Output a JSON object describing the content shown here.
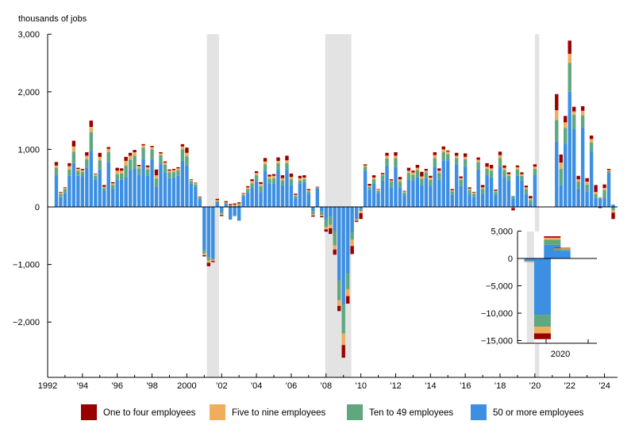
{
  "chart_data": {
    "type": "stacked-bar",
    "unit_label": "thousands of jobs",
    "y_ticks": [
      3000,
      2000,
      1000,
      0,
      -1000,
      -2000
    ],
    "y_tick_labels": [
      "3,000",
      "2,000",
      "1,000",
      "0",
      "−1,000",
      "−2,000"
    ],
    "ylim": [
      -2900,
      3000
    ],
    "x_range": [
      1992.0,
      2024.75
    ],
    "x_ticks": [
      1992,
      1994,
      1996,
      1998,
      2000,
      2002,
      2004,
      2006,
      2008,
      2010,
      2012,
      2014,
      2016,
      2018,
      2020,
      2022,
      2024
    ],
    "x_tick_labels": [
      "1992",
      "’94",
      "’96",
      "’98",
      "2000",
      "’02",
      "’04",
      "’06",
      "’08",
      "’10",
      "’12",
      "’14",
      "’16",
      "’18",
      "’20",
      "’22",
      "’24"
    ],
    "recessions": [
      [
        2001.15,
        2001.85
      ],
      [
        2007.95,
        2009.45
      ],
      [
        2020.0,
        2020.25
      ]
    ],
    "series": [
      {
        "name": "One to four employees",
        "color": "#990000"
      },
      {
        "name": "Five to nine employees",
        "color": "#f0ad5d"
      },
      {
        "name": "Ten to 49 employees",
        "color": "#5fa77f"
      },
      {
        "name": "50 or more employees",
        "color": "#3c8fe3"
      }
    ],
    "bars": [
      {
        "x": 1992.5,
        "v": [
          60,
          40,
          130,
          550
        ]
      },
      {
        "x": 1992.75,
        "v": [
          10,
          20,
          60,
          170
        ]
      },
      {
        "x": 1993.0,
        "v": [
          10,
          20,
          70,
          240
        ]
      },
      {
        "x": 1993.25,
        "v": [
          50,
          60,
          110,
          540
        ]
      },
      {
        "x": 1993.5,
        "v": [
          100,
          90,
          200,
          760
        ]
      },
      {
        "x": 1993.75,
        "v": [
          20,
          30,
          90,
          540
        ]
      },
      {
        "x": 1994.0,
        "v": [
          20,
          30,
          80,
          530
        ]
      },
      {
        "x": 1994.25,
        "v": [
          60,
          60,
          150,
          680
        ]
      },
      {
        "x": 1994.5,
        "v": [
          110,
          90,
          330,
          970
        ]
      },
      {
        "x": 1994.75,
        "v": [
          10,
          30,
          70,
          470
        ]
      },
      {
        "x": 1995.0,
        "v": [
          70,
          60,
          160,
          650
        ]
      },
      {
        "x": 1995.25,
        "v": [
          30,
          20,
          40,
          290
        ]
      },
      {
        "x": 1995.5,
        "v": [
          30,
          60,
          170,
          780
        ]
      },
      {
        "x": 1995.75,
        "v": [
          20,
          30,
          70,
          310
        ]
      },
      {
        "x": 1996.0,
        "v": [
          50,
          60,
          100,
          470
        ]
      },
      {
        "x": 1996.25,
        "v": [
          40,
          50,
          110,
          470
        ]
      },
      {
        "x": 1996.5,
        "v": [
          70,
          80,
          210,
          510
        ]
      },
      {
        "x": 1996.75,
        "v": [
          50,
          70,
          180,
          640
        ]
      },
      {
        "x": 1997.0,
        "v": [
          40,
          60,
          220,
          670
        ]
      },
      {
        "x": 1997.25,
        "v": [
          20,
          40,
          110,
          560
        ]
      },
      {
        "x": 1997.5,
        "v": [
          20,
          40,
          200,
          830
        ]
      },
      {
        "x": 1997.75,
        "v": [
          30,
          40,
          110,
          540
        ]
      },
      {
        "x": 1998.0,
        "v": [
          20,
          40,
          180,
          820
        ]
      },
      {
        "x": 1998.25,
        "v": [
          100,
          60,
          140,
          350
        ]
      },
      {
        "x": 1998.5,
        "v": [
          20,
          30,
          150,
          750
        ]
      },
      {
        "x": 1998.75,
        "v": [
          20,
          40,
          130,
          600
        ]
      },
      {
        "x": 1999.0,
        "v": [
          20,
          30,
          100,
          500
        ]
      },
      {
        "x": 1999.25,
        "v": [
          20,
          30,
          100,
          510
        ]
      },
      {
        "x": 1999.5,
        "v": [
          20,
          30,
          100,
          540
        ]
      },
      {
        "x": 1999.75,
        "v": [
          40,
          50,
          200,
          800
        ]
      },
      {
        "x": 2000.0,
        "v": [
          90,
          60,
          160,
          720
        ]
      },
      {
        "x": 2000.25,
        "v": [
          10,
          20,
          50,
          400
        ]
      },
      {
        "x": 2000.5,
        "v": [
          10,
          20,
          40,
          350
        ]
      },
      {
        "x": 2000.75,
        "v": [
          10,
          10,
          30,
          130
        ]
      },
      {
        "x": 2001.0,
        "v": [
          -20,
          -30,
          -60,
          -750
        ]
      },
      {
        "x": 2001.25,
        "v": [
          -60,
          -40,
          -60,
          -870
        ]
      },
      {
        "x": 2001.5,
        "v": [
          -20,
          -20,
          -20,
          -900
        ]
      },
      {
        "x": 2001.75,
        "v": [
          20,
          20,
          20,
          80
        ]
      },
      {
        "x": 2002.0,
        "v": [
          -20,
          -20,
          -30,
          -90
        ]
      },
      {
        "x": 2002.25,
        "v": [
          20,
          10,
          20,
          50
        ]
      },
      {
        "x": 2002.5,
        "v": [
          20,
          10,
          20,
          -220
        ]
      },
      {
        "x": 2002.75,
        "v": [
          20,
          20,
          20,
          -160
        ]
      },
      {
        "x": 2003.0,
        "v": [
          20,
          20,
          40,
          -240
        ]
      },
      {
        "x": 2003.25,
        "v": [
          10,
          20,
          30,
          180
        ]
      },
      {
        "x": 2003.5,
        "v": [
          20,
          30,
          60,
          250
        ]
      },
      {
        "x": 2003.75,
        "v": [
          30,
          40,
          80,
          330
        ]
      },
      {
        "x": 2004.0,
        "v": [
          30,
          40,
          100,
          450
        ]
      },
      {
        "x": 2004.25,
        "v": [
          30,
          40,
          100,
          260
        ]
      },
      {
        "x": 2004.5,
        "v": [
          60,
          50,
          110,
          630
        ]
      },
      {
        "x": 2004.75,
        "v": [
          30,
          40,
          80,
          410
        ]
      },
      {
        "x": 2005.0,
        "v": [
          30,
          40,
          100,
          400
        ]
      },
      {
        "x": 2005.25,
        "v": [
          60,
          40,
          110,
          650
        ]
      },
      {
        "x": 2005.5,
        "v": [
          50,
          40,
          80,
          380
        ]
      },
      {
        "x": 2005.75,
        "v": [
          80,
          50,
          110,
          650
        ]
      },
      {
        "x": 2006.0,
        "v": [
          60,
          40,
          100,
          380
        ]
      },
      {
        "x": 2006.25,
        "v": [
          20,
          20,
          40,
          150
        ]
      },
      {
        "x": 2006.5,
        "v": [
          40,
          40,
          60,
          400
        ]
      },
      {
        "x": 2006.75,
        "v": [
          40,
          30,
          50,
          430
        ]
      },
      {
        "x": 2007.0,
        "v": [
          20,
          20,
          40,
          230
        ]
      },
      {
        "x": 2007.25,
        "v": [
          -20,
          -20,
          -60,
          -70
        ]
      },
      {
        "x": 2007.5,
        "v": [
          10,
          10,
          20,
          310
        ]
      },
      {
        "x": 2007.75,
        "v": [
          -20,
          -20,
          -60,
          -80
        ]
      },
      {
        "x": 2008.0,
        "v": [
          -40,
          -40,
          -130,
          -220
        ]
      },
      {
        "x": 2008.25,
        "v": [
          -100,
          -60,
          -140,
          -170
        ]
      },
      {
        "x": 2008.5,
        "v": [
          -90,
          -70,
          -250,
          -420
        ]
      },
      {
        "x": 2008.75,
        "v": [
          -90,
          -100,
          -340,
          -1280
        ]
      },
      {
        "x": 2009.0,
        "v": [
          -220,
          -200,
          -500,
          -1700
        ]
      },
      {
        "x": 2009.25,
        "v": [
          -130,
          -120,
          -280,
          -1150
        ]
      },
      {
        "x": 2009.5,
        "v": [
          -140,
          -110,
          -130,
          -440
        ]
      },
      {
        "x": 2009.75,
        "v": [
          -20,
          -20,
          -20,
          -200
        ]
      },
      {
        "x": 2010.0,
        "v": [
          -100,
          -40,
          -30,
          -40
        ]
      },
      {
        "x": 2010.25,
        "v": [
          20,
          20,
          80,
          620
        ]
      },
      {
        "x": 2010.5,
        "v": [
          30,
          20,
          50,
          300
        ]
      },
      {
        "x": 2010.75,
        "v": [
          40,
          30,
          80,
          400
        ]
      },
      {
        "x": 2011.0,
        "v": [
          10,
          20,
          40,
          240
        ]
      },
      {
        "x": 2011.25,
        "v": [
          20,
          20,
          90,
          460
        ]
      },
      {
        "x": 2011.5,
        "v": [
          50,
          50,
          120,
          720
        ]
      },
      {
        "x": 2011.75,
        "v": [
          20,
          20,
          100,
          340
        ]
      },
      {
        "x": 2012.0,
        "v": [
          60,
          40,
          160,
          690
        ]
      },
      {
        "x": 2012.25,
        "v": [
          40,
          40,
          100,
          340
        ]
      },
      {
        "x": 2012.5,
        "v": [
          10,
          20,
          50,
          200
        ]
      },
      {
        "x": 2012.75,
        "v": [
          50,
          40,
          110,
          480
        ]
      },
      {
        "x": 2013.0,
        "v": [
          30,
          40,
          100,
          460
        ]
      },
      {
        "x": 2013.25,
        "v": [
          50,
          40,
          120,
          520
        ]
      },
      {
        "x": 2013.5,
        "v": [
          80,
          40,
          110,
          380
        ]
      },
      {
        "x": 2013.75,
        "v": [
          30,
          30,
          100,
          500
        ]
      },
      {
        "x": 2014.0,
        "v": [
          30,
          40,
          100,
          370
        ]
      },
      {
        "x": 2014.25,
        "v": [
          50,
          50,
          150,
          700
        ]
      },
      {
        "x": 2014.5,
        "v": [
          40,
          40,
          120,
          470
        ]
      },
      {
        "x": 2014.75,
        "v": [
          50,
          50,
          140,
          810
        ]
      },
      {
        "x": 2015.0,
        "v": [
          20,
          40,
          110,
          810
        ]
      },
      {
        "x": 2015.25,
        "v": [
          20,
          20,
          60,
          210
        ]
      },
      {
        "x": 2015.5,
        "v": [
          50,
          40,
          120,
          730
        ]
      },
      {
        "x": 2015.75,
        "v": [
          30,
          30,
          110,
          360
        ]
      },
      {
        "x": 2016.0,
        "v": [
          60,
          40,
          130,
          700
        ]
      },
      {
        "x": 2016.25,
        "v": [
          20,
          20,
          80,
          220
        ]
      },
      {
        "x": 2016.5,
        "v": [
          10,
          20,
          60,
          170
        ]
      },
      {
        "x": 2016.75,
        "v": [
          40,
          40,
          130,
          650
        ]
      },
      {
        "x": 2017.0,
        "v": [
          40,
          30,
          80,
          230
        ]
      },
      {
        "x": 2017.25,
        "v": [
          60,
          40,
          110,
          550
        ]
      },
      {
        "x": 2017.5,
        "v": [
          60,
          40,
          120,
          510
        ]
      },
      {
        "x": 2017.75,
        "v": [
          20,
          20,
          60,
          200
        ]
      },
      {
        "x": 2018.0,
        "v": [
          60,
          50,
          160,
          690
        ]
      },
      {
        "x": 2018.25,
        "v": [
          40,
          40,
          120,
          520
        ]
      },
      {
        "x": 2018.5,
        "v": [
          30,
          30,
          80,
          460
        ]
      },
      {
        "x": 2018.75,
        "v": [
          -40,
          -20,
          40,
          150
        ]
      },
      {
        "x": 2019.0,
        "v": [
          30,
          40,
          110,
          540
        ]
      },
      {
        "x": 2019.25,
        "v": [
          30,
          30,
          80,
          460
        ]
      },
      {
        "x": 2019.5,
        "v": [
          30,
          30,
          80,
          230
        ]
      },
      {
        "x": 2019.75,
        "v": [
          40,
          30,
          60,
          60
        ]
      },
      {
        "x": 2020.0,
        "v": [
          40,
          40,
          100,
          560
        ]
      },
      {
        "x": 2021.25,
        "v": [
          280,
          170,
          380,
          1130
        ]
      },
      {
        "x": 2021.5,
        "v": [
          140,
          110,
          280,
          380
        ]
      },
      {
        "x": 2021.75,
        "v": [
          110,
          100,
          270,
          1100
        ]
      },
      {
        "x": 2022.0,
        "v": [
          230,
          160,
          500,
          2000
        ]
      },
      {
        "x": 2022.25,
        "v": [
          80,
          60,
          250,
          1350
        ]
      },
      {
        "x": 2022.5,
        "v": [
          60,
          40,
          120,
          320
        ]
      },
      {
        "x": 2022.75,
        "v": [
          80,
          80,
          210,
          1380
        ]
      },
      {
        "x": 2023.0,
        "v": [
          60,
          50,
          120,
          270
        ]
      },
      {
        "x": 2023.25,
        "v": [
          60,
          60,
          150,
          970
        ]
      },
      {
        "x": 2023.5,
        "v": [
          120,
          40,
          60,
          160
        ]
      },
      {
        "x": 2023.75,
        "v": [
          -20,
          10,
          20,
          140
        ]
      },
      {
        "x": 2024.0,
        "v": [
          60,
          40,
          130,
          160
        ]
      },
      {
        "x": 2024.25,
        "v": [
          20,
          20,
          30,
          590
        ]
      },
      {
        "x": 2024.5,
        "v": [
          -110,
          -40,
          -60,
          40
        ]
      }
    ],
    "inset": {
      "y_ticks": [
        5000,
        0,
        -5000,
        -10000,
        -15000
      ],
      "y_tick_labels": [
        "5,000",
        "0",
        "−5,000",
        "−10,000",
        "−15,000"
      ],
      "ylim": [
        -16000,
        5000
      ],
      "x_label": "2020",
      "recessions": [
        [
          0.45,
          1.9
        ]
      ],
      "bars": [
        {
          "pos": 0,
          "v": [
            -30,
            -50,
            -100,
            -450
          ]
        },
        {
          "pos": 2,
          "v": [
            -1050,
            -1200,
            -2200,
            -10300
          ]
        },
        {
          "pos": 4,
          "v": [
            250,
            400,
            900,
            2500
          ]
        },
        {
          "pos": 6,
          "v": [
            100,
            150,
            300,
            1400
          ]
        }
      ]
    }
  }
}
